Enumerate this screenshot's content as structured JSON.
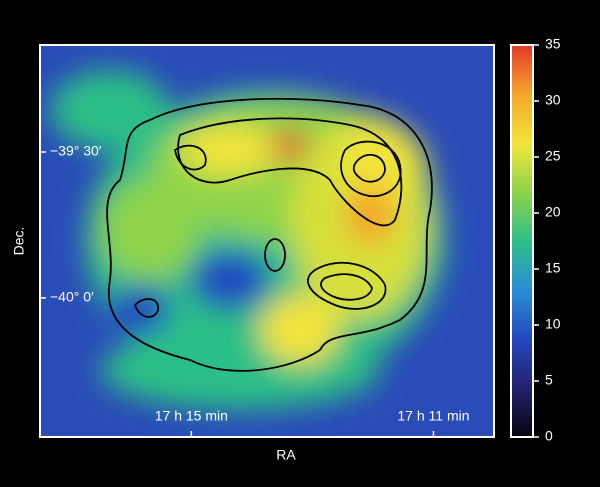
{
  "chart_data": {
    "type": "heatmap",
    "xlabel": "RA",
    "ylabel": "Dec.",
    "xlim": [
      1037.5,
      1030
    ],
    "xticks": [
      {
        "value": 1035,
        "label": "17 h 15 min"
      },
      {
        "value": 1031,
        "label": "17 h 11 min"
      }
    ],
    "ylim": [
      -2428.6,
      -2348
    ],
    "yticks": [
      {
        "value": -2370,
        "label": "−39° 30′"
      },
      {
        "value": -2400,
        "label": "−40° 0′"
      }
    ],
    "colorbar": {
      "lim": [
        0,
        35
      ],
      "ticks": [
        0,
        5,
        10,
        15,
        20,
        25,
        30,
        35
      ],
      "colormap": [
        "#050510",
        "#22226e",
        "#2448c0",
        "#2a8fd6",
        "#2cbf86",
        "#8fd44a",
        "#f2e43a",
        "#f5a52c",
        "#e23a2a"
      ]
    }
  }
}
